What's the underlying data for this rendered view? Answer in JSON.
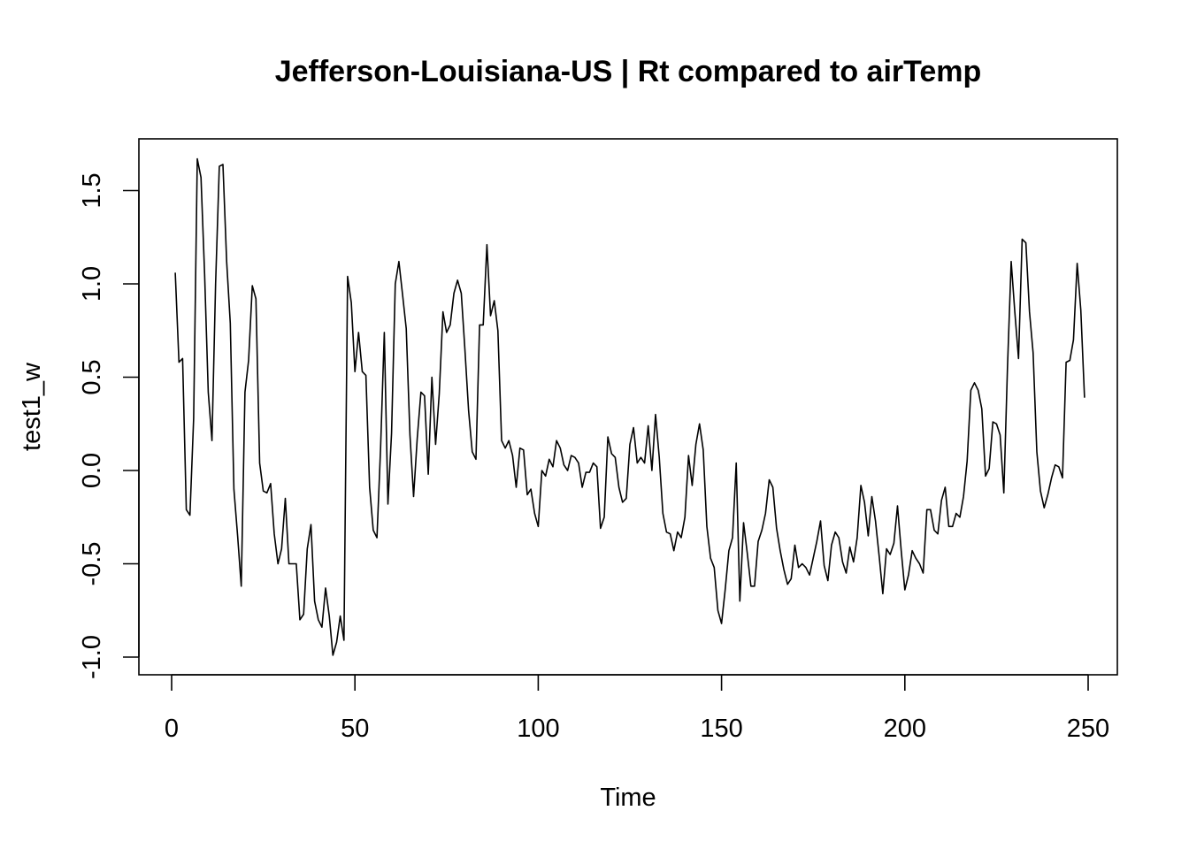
{
  "chart_data": {
    "type": "line",
    "title": "Jefferson-Louisiana-US | Rt compared to airTemp",
    "xlabel": "Time",
    "ylabel": "test1_w",
    "xlim": [
      1,
      248
    ],
    "ylim": [
      -1.0,
      1.67
    ],
    "x_ticks": [
      0,
      50,
      100,
      150,
      200,
      250
    ],
    "y_ticks": [
      -1.0,
      -0.5,
      0.0,
      0.5,
      1.0,
      1.5
    ],
    "x_tick_labels": [
      "0",
      "50",
      "100",
      "150",
      "200",
      "250"
    ],
    "y_tick_labels": [
      "-1.0",
      "-0.5",
      "0.0",
      "0.5",
      "1.0",
      "1.5"
    ],
    "grid": false,
    "series": [
      {
        "color": "#000000",
        "x_start": 1,
        "values": [
          1.06,
          0.58,
          0.6,
          -0.21,
          -0.24,
          0.28,
          1.67,
          1.57,
          1.05,
          0.42,
          0.16,
          1.0,
          1.63,
          1.64,
          1.12,
          0.79,
          -0.1,
          -0.35,
          -0.62,
          0.42,
          0.59,
          0.99,
          0.92,
          0.04,
          -0.11,
          -0.12,
          -0.07,
          -0.34,
          -0.5,
          -0.42,
          -0.15,
          -0.5,
          -0.5,
          -0.5,
          -0.8,
          -0.77,
          -0.42,
          -0.29,
          -0.7,
          -0.8,
          -0.84,
          -0.63,
          -0.78,
          -0.99,
          -0.92,
          -0.78,
          -0.91,
          1.04,
          0.9,
          0.53,
          0.74,
          0.53,
          0.51,
          -0.09,
          -0.32,
          -0.36,
          0.12,
          0.74,
          -0.18,
          0.2,
          1.0,
          1.12,
          0.94,
          0.76,
          0.19,
          -0.14,
          0.17,
          0.42,
          0.4,
          -0.02,
          0.5,
          0.14,
          0.41,
          0.85,
          0.74,
          0.78,
          0.95,
          1.02,
          0.95,
          0.65,
          0.32,
          0.1,
          0.06,
          0.78,
          0.78,
          1.21,
          0.83,
          0.91,
          0.75,
          0.16,
          0.12,
          0.16,
          0.08,
          -0.09,
          0.12,
          0.11,
          -0.13,
          -0.1,
          -0.23,
          -0.3,
          0.0,
          -0.03,
          0.06,
          0.02,
          0.16,
          0.12,
          0.03,
          0.0,
          0.08,
          0.07,
          0.04,
          -0.09,
          -0.01,
          -0.01,
          0.04,
          0.02,
          -0.31,
          -0.25,
          0.18,
          0.09,
          0.07,
          -0.09,
          -0.17,
          -0.15,
          0.14,
          0.23,
          0.04,
          0.07,
          0.04,
          0.24,
          0.0,
          0.3,
          0.07,
          -0.23,
          -0.33,
          -0.34,
          -0.43,
          -0.33,
          -0.36,
          -0.25,
          0.08,
          -0.08,
          0.14,
          0.25,
          0.11,
          -0.3,
          -0.47,
          -0.52,
          -0.75,
          -0.82,
          -0.64,
          -0.43,
          -0.36,
          0.04,
          -0.7,
          -0.28,
          -0.44,
          -0.62,
          -0.62,
          -0.38,
          -0.32,
          -0.23,
          -0.05,
          -0.09,
          -0.31,
          -0.43,
          -0.53,
          -0.61,
          -0.58,
          -0.4,
          -0.52,
          -0.5,
          -0.52,
          -0.56,
          -0.47,
          -0.38,
          -0.27,
          -0.51,
          -0.59,
          -0.4,
          -0.33,
          -0.36,
          -0.49,
          -0.55,
          -0.41,
          -0.49,
          -0.36,
          -0.08,
          -0.17,
          -0.35,
          -0.14,
          -0.27,
          -0.46,
          -0.66,
          -0.42,
          -0.45,
          -0.39,
          -0.19,
          -0.43,
          -0.64,
          -0.56,
          -0.43,
          -0.47,
          -0.5,
          -0.55,
          -0.21,
          -0.21,
          -0.32,
          -0.34,
          -0.16,
          -0.09,
          -0.3,
          -0.3,
          -0.23,
          -0.25,
          -0.14,
          0.05,
          0.43,
          0.47,
          0.43,
          0.33,
          -0.03,
          0.01,
          0.26,
          0.25,
          0.19,
          -0.12,
          0.55,
          1.12,
          0.85,
          0.6,
          1.24,
          1.22,
          0.85,
          0.63,
          0.1,
          -0.11,
          -0.2,
          -0.13,
          -0.04,
          0.03,
          0.02,
          -0.04,
          0.58,
          0.59,
          0.7,
          1.11,
          0.86,
          0.39
        ]
      }
    ]
  }
}
